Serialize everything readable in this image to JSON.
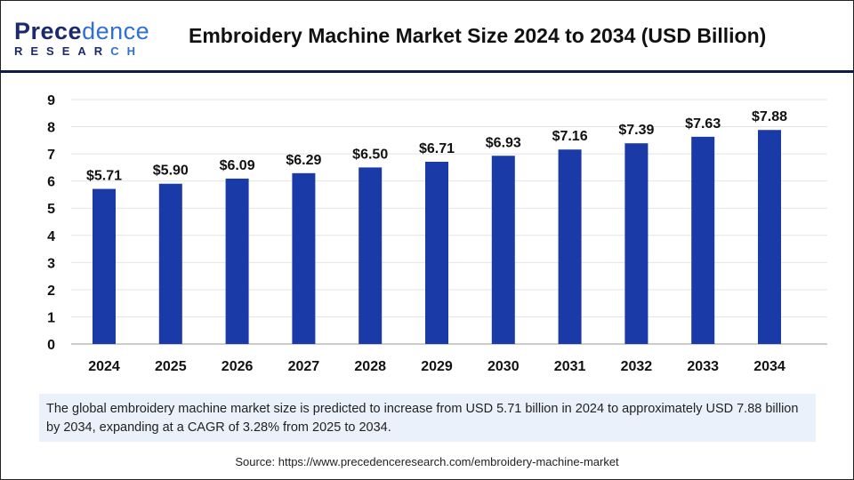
{
  "logo": {
    "line1_a": "Prece",
    "line1_b": "dence",
    "line2_a": "RESEAR",
    "line2_b": "CH"
  },
  "title": "Embroidery Machine Market Size 2024 to 2034 (USD Billion)",
  "chart_data": {
    "type": "bar",
    "title": "Embroidery Machine Market Size 2024 to 2034 (USD Billion)",
    "categories": [
      "2024",
      "2025",
      "2026",
      "2027",
      "2028",
      "2029",
      "2030",
      "2031",
      "2032",
      "2033",
      "2034"
    ],
    "values": [
      5.71,
      5.9,
      6.09,
      6.29,
      6.5,
      6.71,
      6.93,
      7.16,
      7.39,
      7.63,
      7.88
    ],
    "data_labels": [
      "$5.71",
      "$5.90",
      "$6.09",
      "$6.29",
      "$6.50",
      "$6.71",
      "$6.93",
      "$7.16",
      "$7.39",
      "$7.63",
      "$7.88"
    ],
    "ylim": [
      0,
      9
    ],
    "yticks": [
      "0",
      "1",
      "2",
      "3",
      "4",
      "5",
      "6",
      "7",
      "8",
      "9"
    ],
    "grid": true,
    "bar_color": "#1a3aa8"
  },
  "caption": "The global embroidery machine market size is predicted to increase from USD 5.71 billion in 2024 to approximately USD 7.88 billion by 2034, expanding at a CAGR of 3.28% from 2025 to 2034.",
  "source": "Source: https://www.precedenceresearch.com/embroidery-machine-market"
}
